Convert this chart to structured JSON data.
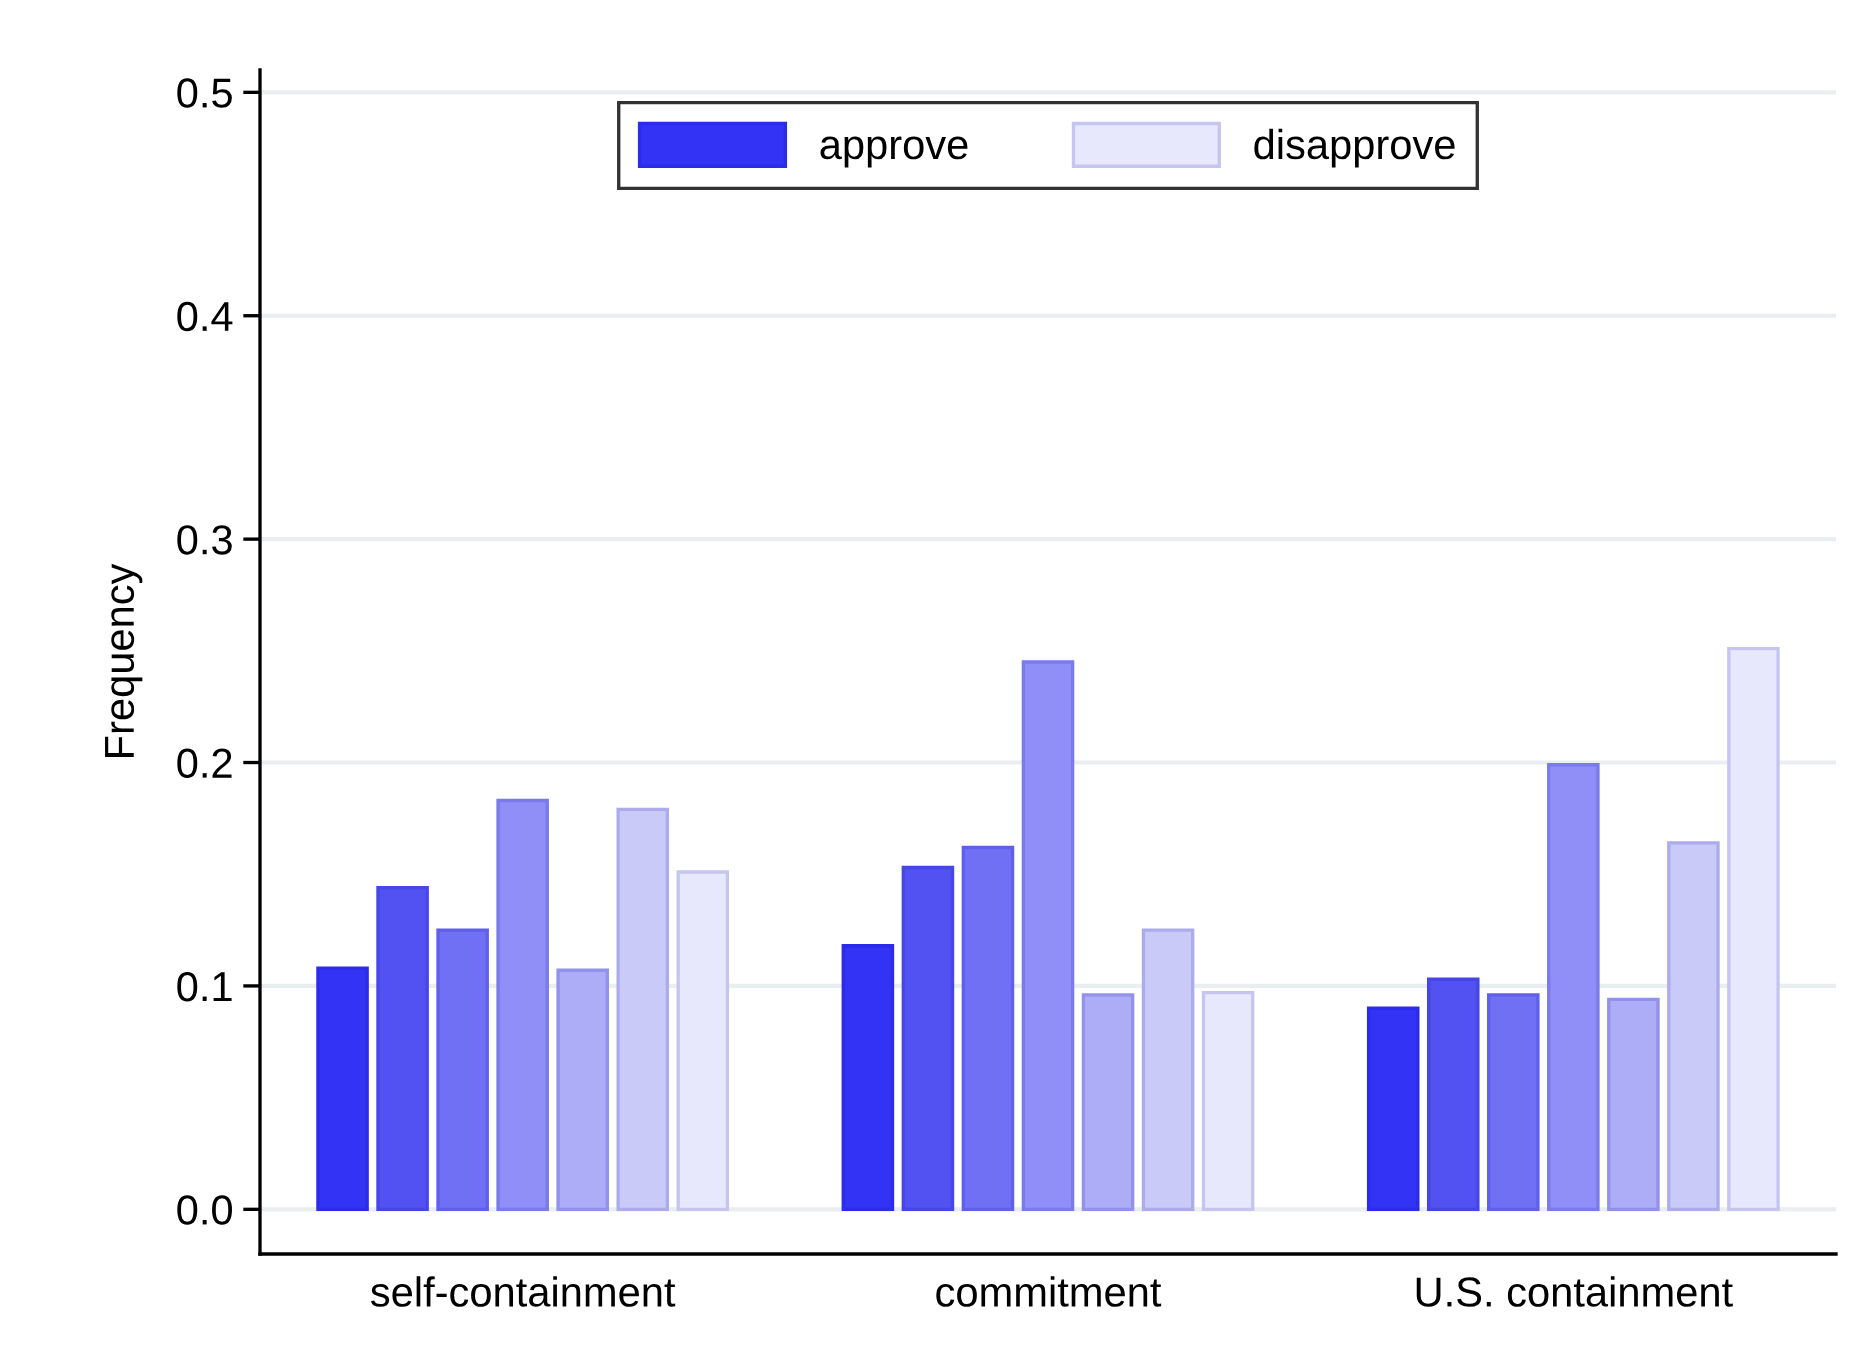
{
  "chart_data": {
    "type": "bar",
    "ylabel": "Frequency",
    "categories": [
      "self-containment",
      "commitment",
      "U.S. containment"
    ],
    "series": [
      {
        "name": "approve",
        "color": "#3333f5",
        "values": [
          0.108,
          0.118,
          0.09
        ]
      },
      {
        "color": "#5252f2",
        "values": [
          0.144,
          0.153,
          0.103
        ]
      },
      {
        "color": "#7070f5",
        "values": [
          0.125,
          0.162,
          0.096
        ]
      },
      {
        "color": "#8f8ff7",
        "values": [
          0.183,
          0.245,
          0.199
        ]
      },
      {
        "color": "#acacf7",
        "values": [
          0.107,
          0.096,
          0.094
        ]
      },
      {
        "color": "#cacaf9",
        "values": [
          0.179,
          0.125,
          0.164
        ]
      },
      {
        "name": "disapprove",
        "color": "#e8e8fc",
        "values": [
          0.151,
          0.097,
          0.251
        ]
      }
    ],
    "ylim": [
      -0.02,
      0.51
    ],
    "yticks": [
      {
        "value": 0,
        "label": "0.0"
      },
      {
        "value": 0.1,
        "label": "0.1"
      },
      {
        "value": 0.2,
        "label": "0.2"
      },
      {
        "value": 0.3,
        "label": "0.3"
      },
      {
        "value": 0.4,
        "label": "0.4"
      },
      {
        "value": 0.5,
        "label": "0.5"
      }
    ],
    "grid": "y",
    "legend": "top"
  }
}
